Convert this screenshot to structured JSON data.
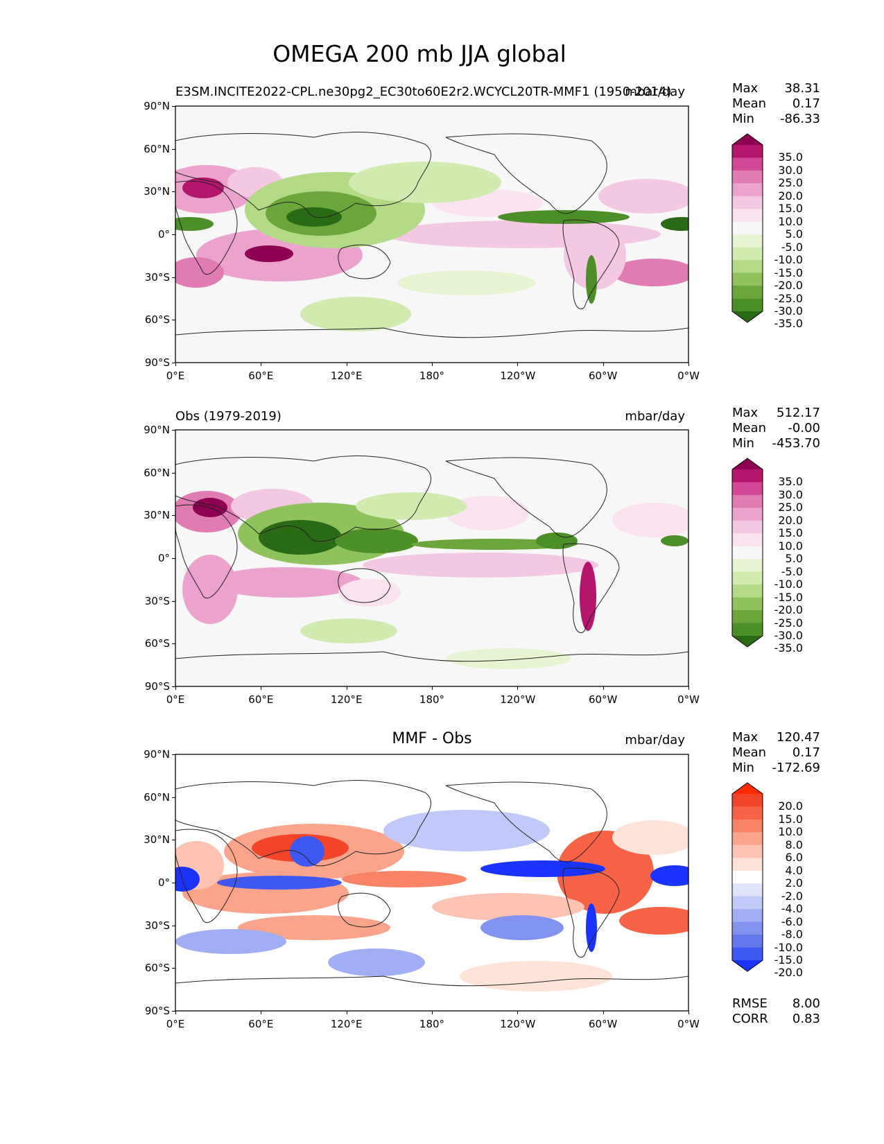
{
  "figure": {
    "title": "OMEGA 200 mb JJA global",
    "lat_ticks": [
      "90°N",
      "60°N",
      "30°N",
      "0°",
      "30°S",
      "60°S",
      "90°S"
    ],
    "lon_ticks": [
      "0°E",
      "60°E",
      "120°E",
      "180°",
      "120°W",
      "60°W",
      "0°W"
    ]
  },
  "panels": [
    {
      "left_title": "E3SM.INCITE2022-CPL.ne30pg2_EC30to60E2r2.WCYCL20TR-MMF1 (1950-2014)",
      "center_title": "",
      "units": "mbar/day",
      "stats": [
        {
          "label": "Max",
          "value": "38.31"
        },
        {
          "label": "Mean",
          "value": "0.17"
        },
        {
          "label": "Min",
          "value": "-86.33"
        }
      ],
      "colorbar": {
        "labels": [
          "35.0",
          "30.0",
          "25.0",
          "20.0",
          "15.0",
          "10.0",
          "5.0",
          "-5.0",
          "-10.0",
          "-15.0",
          "-20.0",
          "-25.0",
          "-30.0",
          "-35.0"
        ],
        "colors": [
          "#8e0152",
          "#b5166d",
          "#d14896",
          "#e17bb3",
          "#eba3cd",
          "#f4c8e2",
          "#fae3ef",
          "#f7f7f7",
          "#e7f4d2",
          "#d1eab0",
          "#b3da86",
          "#8fc25c",
          "#6aa63b",
          "#4c8e28",
          "#2a6a17"
        ]
      },
      "extra_stats": []
    },
    {
      "left_title": "Obs (1979-2019)",
      "center_title": "",
      "units": "mbar/day",
      "stats": [
        {
          "label": "Max",
          "value": "512.17"
        },
        {
          "label": "Mean",
          "value": "-0.00"
        },
        {
          "label": "Min",
          "value": "-453.70"
        }
      ],
      "colorbar": {
        "labels": [
          "35.0",
          "30.0",
          "25.0",
          "20.0",
          "15.0",
          "10.0",
          "5.0",
          "-5.0",
          "-10.0",
          "-15.0",
          "-20.0",
          "-25.0",
          "-30.0",
          "-35.0"
        ],
        "colors": [
          "#8e0152",
          "#b5166d",
          "#d14896",
          "#e17bb3",
          "#eba3cd",
          "#f4c8e2",
          "#fae3ef",
          "#f7f7f7",
          "#e7f4d2",
          "#d1eab0",
          "#b3da86",
          "#8fc25c",
          "#6aa63b",
          "#4c8e28",
          "#2a6a17"
        ]
      },
      "extra_stats": []
    },
    {
      "left_title": "",
      "center_title": "MMF - Obs",
      "units": "mbar/day",
      "stats": [
        {
          "label": "Max",
          "value": "120.47"
        },
        {
          "label": "Mean",
          "value": "0.17"
        },
        {
          "label": "Min",
          "value": "-172.69"
        }
      ],
      "colorbar": {
        "labels": [
          "20.0",
          "15.0",
          "10.0",
          "8.0",
          "6.0",
          "4.0",
          "2.0",
          "-2.0",
          "-4.0",
          "-6.0",
          "-8.0",
          "-10.0",
          "-15.0",
          "-20.0"
        ],
        "colors": [
          "#ff2a00",
          "#f2442a",
          "#f66346",
          "#f88367",
          "#faa48c",
          "#fcc3b2",
          "#fde2d8",
          "#ffffff",
          "#dfe4fb",
          "#c0c9f7",
          "#a1aef3",
          "#8293ef",
          "#6378eb",
          "#3f58f1",
          "#1a33ff"
        ]
      },
      "extra_stats": [
        {
          "label": "RMSE",
          "value": "8.00"
        },
        {
          "label": "CORR",
          "value": "0.83"
        }
      ]
    }
  ]
}
